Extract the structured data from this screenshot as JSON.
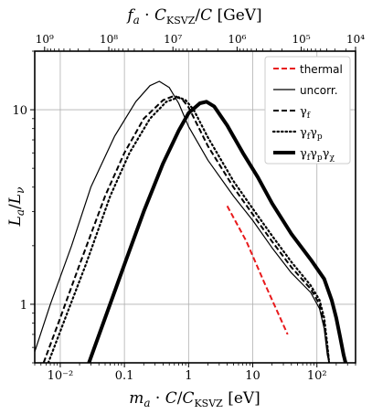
{
  "chart_data": {
    "type": "line",
    "xscale": "log",
    "yscale": "log",
    "xlim": [
      0.004,
      400
    ],
    "ylim": [
      0.5,
      20
    ],
    "grid": true,
    "xlabel": "m_a · C/C_KSVZ [eV]",
    "ylabel": "L_a/L_ν",
    "top_xlabel": "f_a · C_KSVZ/C [GeV]",
    "legend_loc": "upper right",
    "x_ticks": [
      {
        "value": 0.01,
        "label": "10⁻²"
      },
      {
        "value": 0.1,
        "label": "0.1"
      },
      {
        "value": 1,
        "label": "1"
      },
      {
        "value": 10,
        "label": "10"
      },
      {
        "value": 100,
        "label": "10²"
      }
    ],
    "y_ticks": [
      {
        "value": 1,
        "label": "1"
      },
      {
        "value": 10,
        "label": "10"
      }
    ],
    "top_ticks": [
      {
        "value": 1000000000,
        "label": "10⁹"
      },
      {
        "value": 100000000,
        "label": "10⁸"
      },
      {
        "value": 10000000,
        "label": "10⁷"
      },
      {
        "value": 1000000,
        "label": "10⁶"
      },
      {
        "value": 100000,
        "label": "10⁵"
      },
      {
        "value": 10000,
        "label": "10⁴"
      }
    ],
    "series": [
      {
        "name": "thermal",
        "color": "#e8191b",
        "style": "dashed",
        "width": 2,
        "points": [
          [
            4,
            3.2
          ],
          [
            8,
            2.1
          ],
          [
            15,
            1.3
          ],
          [
            35,
            0.7
          ]
        ]
      },
      {
        "name": "uncorr.",
        "color": "#000000",
        "style": "solid",
        "width": 1.2,
        "points": [
          [
            0.004,
            0.57
          ],
          [
            0.007,
            1.0
          ],
          [
            0.015,
            2.0
          ],
          [
            0.03,
            4.0
          ],
          [
            0.07,
            7.3
          ],
          [
            0.15,
            11
          ],
          [
            0.25,
            13.3
          ],
          [
            0.35,
            14
          ],
          [
            0.5,
            13
          ],
          [
            0.7,
            10.8
          ],
          [
            1,
            8.2
          ],
          [
            2,
            5.5
          ],
          [
            5,
            3.6
          ],
          [
            10,
            2.7
          ],
          [
            20,
            1.95
          ],
          [
            40,
            1.45
          ],
          [
            80,
            1.15
          ],
          [
            110,
            0.95
          ],
          [
            130,
            0.75
          ],
          [
            145,
            0.55
          ],
          [
            155,
            0.5
          ]
        ]
      },
      {
        "name": "γ_f",
        "color": "#000000",
        "style": "dashed",
        "width": 2,
        "points": [
          [
            0.0055,
            0.5
          ],
          [
            0.01,
            0.85
          ],
          [
            0.02,
            1.6
          ],
          [
            0.05,
            3.6
          ],
          [
            0.1,
            6.0
          ],
          [
            0.2,
            9.0
          ],
          [
            0.4,
            11.2
          ],
          [
            0.6,
            11.8
          ],
          [
            0.8,
            11.3
          ],
          [
            1,
            10.3
          ],
          [
            2,
            6.5
          ],
          [
            5,
            4.0
          ],
          [
            10,
            2.9
          ],
          [
            20,
            2.1
          ],
          [
            40,
            1.55
          ],
          [
            80,
            1.2
          ],
          [
            110,
            1.0
          ],
          [
            130,
            0.8
          ],
          [
            145,
            0.6
          ],
          [
            155,
            0.5
          ]
        ]
      },
      {
        "name": "γ_fγ_p",
        "color": "#000000",
        "style": "dotted",
        "width": 2.2,
        "points": [
          [
            0.0065,
            0.5
          ],
          [
            0.012,
            0.85
          ],
          [
            0.025,
            1.6
          ],
          [
            0.06,
            3.6
          ],
          [
            0.12,
            6.0
          ],
          [
            0.25,
            9.0
          ],
          [
            0.45,
            11.0
          ],
          [
            0.7,
            11.6
          ],
          [
            0.9,
            11.2
          ],
          [
            1.2,
            10.0
          ],
          [
            2,
            7.2
          ],
          [
            5,
            4.3
          ],
          [
            10,
            3.1
          ],
          [
            20,
            2.25
          ],
          [
            40,
            1.65
          ],
          [
            80,
            1.25
          ],
          [
            110,
            1.05
          ],
          [
            130,
            0.85
          ],
          [
            145,
            0.62
          ],
          [
            155,
            0.5
          ]
        ]
      },
      {
        "name": "γ_fγ_pγ_χ",
        "color": "#000000",
        "style": "solid",
        "width": 4,
        "points": [
          [
            0.028,
            0.5
          ],
          [
            0.05,
            0.85
          ],
          [
            0.1,
            1.6
          ],
          [
            0.2,
            3.0
          ],
          [
            0.4,
            5.3
          ],
          [
            0.7,
            7.8
          ],
          [
            1,
            9.6
          ],
          [
            1.5,
            10.8
          ],
          [
            1.9,
            11
          ],
          [
            2.5,
            10.4
          ],
          [
            4,
            8.3
          ],
          [
            7,
            6.0
          ],
          [
            12,
            4.5
          ],
          [
            20,
            3.3
          ],
          [
            40,
            2.3
          ],
          [
            80,
            1.7
          ],
          [
            130,
            1.35
          ],
          [
            170,
            1.05
          ],
          [
            200,
            0.85
          ],
          [
            230,
            0.68
          ],
          [
            260,
            0.55
          ],
          [
            280,
            0.5
          ]
        ]
      }
    ]
  }
}
